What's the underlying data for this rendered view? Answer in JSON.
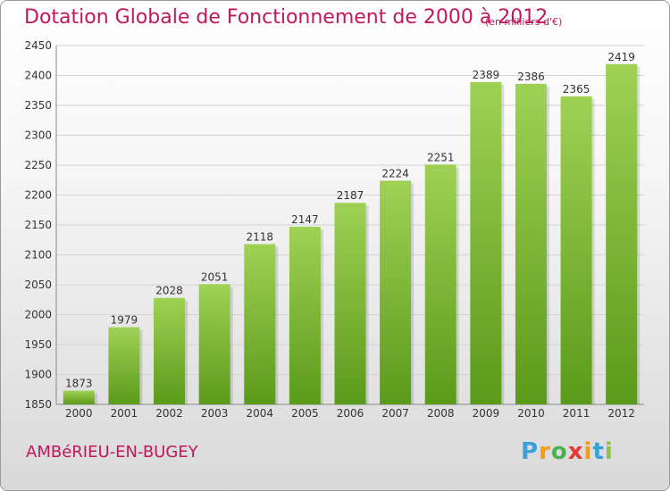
{
  "title": "Dotation Globale de Fonctionnement de 2000 à 2012",
  "units": "(en milliers d'€)",
  "commune": "AMBéRIEU-EN-BUGEY",
  "logo": {
    "letters": [
      "P",
      "r",
      "o",
      "x",
      "i",
      "t",
      "i"
    ],
    "colors": [
      "#3aa0d8",
      "#f39c12",
      "#4caf50",
      "#e53935",
      "#f39c12",
      "#3aa0d8",
      "#8bc34a"
    ]
  },
  "colors": {
    "accent": "#c2185b",
    "bar_top": "#9fd155",
    "bar_bottom": "#5b9a1a",
    "grid": "#d4d4d4"
  },
  "chart_data": {
    "type": "bar",
    "title": "Dotation Globale de Fonctionnement de 2000 à 2012",
    "categories": [
      "2000",
      "2001",
      "2002",
      "2003",
      "2004",
      "2005",
      "2006",
      "2007",
      "2008",
      "2009",
      "2010",
      "2011",
      "2012"
    ],
    "values": [
      1873,
      1979,
      2028,
      2051,
      2118,
      2147,
      2187,
      2224,
      2251,
      2389,
      2386,
      2365,
      2419
    ],
    "ylim": [
      1850,
      2450
    ],
    "yticks": [
      1850,
      1900,
      1950,
      2000,
      2050,
      2100,
      2150,
      2200,
      2250,
      2300,
      2350,
      2400,
      2450
    ],
    "grid": true
  }
}
